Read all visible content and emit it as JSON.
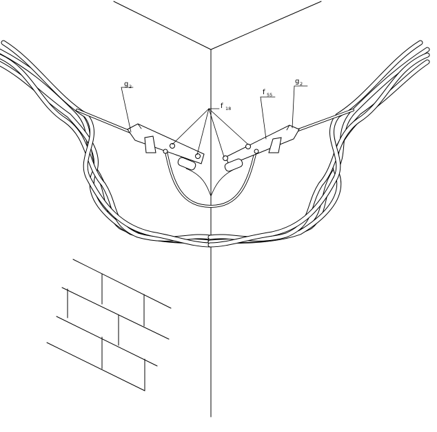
{
  "labels": {
    "g2_left": {
      "base": "g",
      "sub": "2"
    },
    "f18": {
      "base": "f",
      "sub": "18"
    },
    "f55": {
      "base": "f",
      "sub": "55"
    },
    "g2_right": {
      "base": "g",
      "sub": "2"
    }
  }
}
